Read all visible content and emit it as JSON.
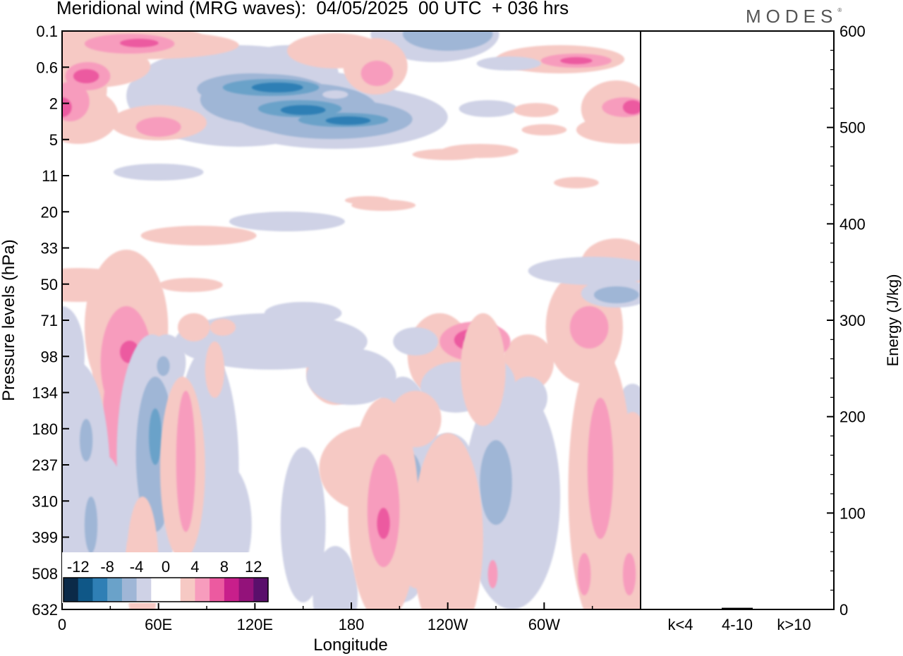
{
  "header": {
    "title": "Meridional wind (MRG waves):  04/05/2025  00 UTC  + 036 hrs",
    "logo": "MODES",
    "logo_mark": "®"
  },
  "colors": {
    "neg": [
      "#0b2a48",
      "#0f5787",
      "#2f7fb5",
      "#6aa2c9",
      "#9fb6d6",
      "#cfd2e6"
    ],
    "pos": [
      "#f6c9c4",
      "#f79cbd",
      "#ec5aa0",
      "#c81f8b",
      "#93127a",
      "#5a0f6b"
    ],
    "background": "#ffffff"
  },
  "chart_data": [
    {
      "type": "heatmap",
      "title": "Meridional wind (MRG waves):  04/05/2025  00 UTC  + 036 hrs",
      "xlabel": "Longitude",
      "ylabel": "Pressure levels (hPa)",
      "x_ticks": [
        "0",
        "60E",
        "120E",
        "180",
        "120W",
        "60W"
      ],
      "x_tick_values": [
        0,
        60,
        120,
        180,
        240,
        300
      ],
      "xlim": [
        0,
        360
      ],
      "y_ticks": [
        "0.1",
        "0.6",
        "2",
        "5",
        "11",
        "20",
        "33",
        "50",
        "71",
        "98",
        "134",
        "180",
        "237",
        "310",
        "399",
        "508",
        "632"
      ],
      "y_scale": "pressure levels (top 0.1 hPa, bottom 632 hPa)",
      "colorbar": {
        "labels": [
          "-12",
          "-8",
          "-4",
          "0",
          "4",
          "8",
          "12"
        ],
        "levels": [
          -14,
          -12,
          -10,
          -8,
          -6,
          -4,
          -2,
          2,
          4,
          6,
          8,
          10,
          12,
          14
        ]
      },
      "features": [
        {
          "sign": "neg",
          "lon": 143,
          "level": "0.6",
          "peak": -10
        },
        {
          "sign": "neg",
          "lon": 150,
          "level": "2",
          "peak": -10
        },
        {
          "sign": "neg",
          "lon": 175,
          "level": "5",
          "peak": -10
        },
        {
          "sign": "pos",
          "lon": 15,
          "level": "0.6",
          "peak": 8
        },
        {
          "sign": "pos",
          "lon": 0,
          "level": "2",
          "peak": 8
        },
        {
          "sign": "pos",
          "lon": 60,
          "level": "5",
          "peak": 6
        },
        {
          "sign": "pos",
          "lon": 320,
          "level": "0.1",
          "peak": 8
        },
        {
          "sign": "pos",
          "lon": 355,
          "level": "2",
          "peak": 8
        },
        {
          "sign": "pos",
          "lon": 40,
          "level": "98",
          "peak": 8
        },
        {
          "sign": "neg",
          "lon": 57,
          "level": "180",
          "peak": -10
        },
        {
          "sign": "pos",
          "lon": 77,
          "level": "237",
          "peak": 6
        },
        {
          "sign": "pos",
          "lon": 250,
          "level": "71",
          "peak": 8
        },
        {
          "sign": "pos",
          "lon": 200,
          "level": "310",
          "peak": 8
        },
        {
          "sign": "neg",
          "lon": 218,
          "level": "310",
          "peak": -8
        },
        {
          "sign": "neg",
          "lon": 275,
          "level": "237",
          "peak": -6
        },
        {
          "sign": "pos",
          "lon": 338,
          "level": "237",
          "peak": 6
        },
        {
          "sign": "neg",
          "lon": 345,
          "level": "50",
          "peak": -8
        }
      ]
    },
    {
      "type": "bar",
      "ylabel": "Energy (J/kg)",
      "categories": [
        "k<4",
        "4-10",
        "k>10"
      ],
      "values": [
        0,
        1,
        0
      ],
      "ylim": [
        0,
        600
      ],
      "y_ticks": [
        "0",
        "100",
        "200",
        "300",
        "400",
        "500",
        "600"
      ]
    }
  ]
}
